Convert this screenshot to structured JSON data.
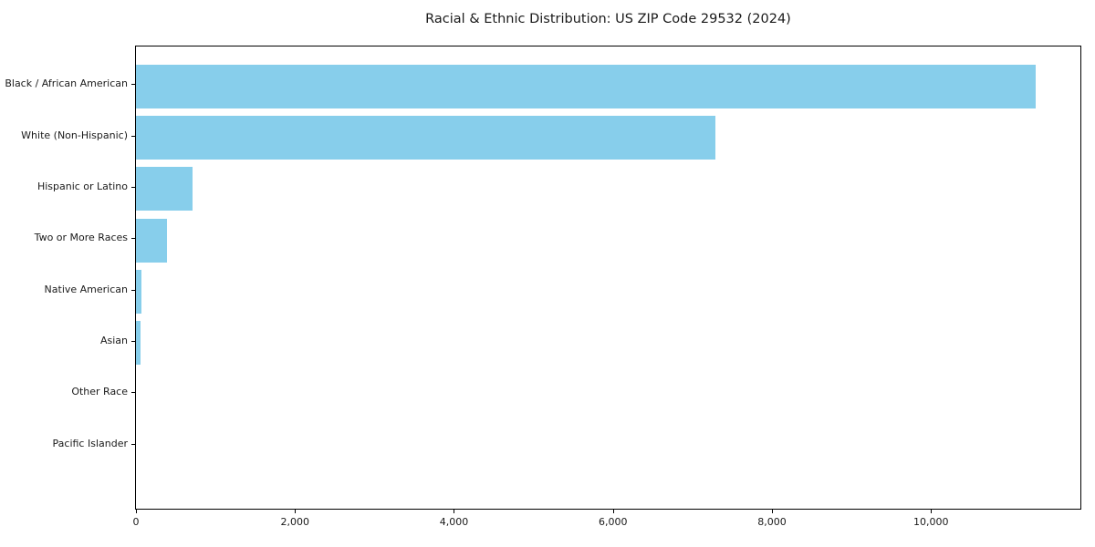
{
  "chart_data": {
    "type": "bar",
    "orientation": "horizontal",
    "title": "Racial & Ethnic Distribution: US ZIP Code 29532 (2024)",
    "categories": [
      "Black / African American",
      "White (Non-Hispanic)",
      "Hispanic or Latino",
      "Two or More Races",
      "Native American",
      "Asian",
      "Other Race",
      "Pacific Islander"
    ],
    "values": [
      11320,
      7285,
      715,
      385,
      70,
      52,
      0,
      0
    ],
    "xlabel": "",
    "ylabel": "",
    "xlim": [
      0,
      11880
    ],
    "x_ticks": [
      0,
      2000,
      4000,
      6000,
      8000,
      10000
    ],
    "x_tick_labels": [
      "0",
      "2,000",
      "4,000",
      "6,000",
      "8,000",
      "10,000"
    ],
    "bar_color": "#87ceeb",
    "spine_color": "#000000",
    "text_color": "#1a1a1a",
    "background_color": "#ffffff",
    "grid": false,
    "legend": "none",
    "bar_fraction": 0.8,
    "category_axis_padding_units": 0.75
  }
}
